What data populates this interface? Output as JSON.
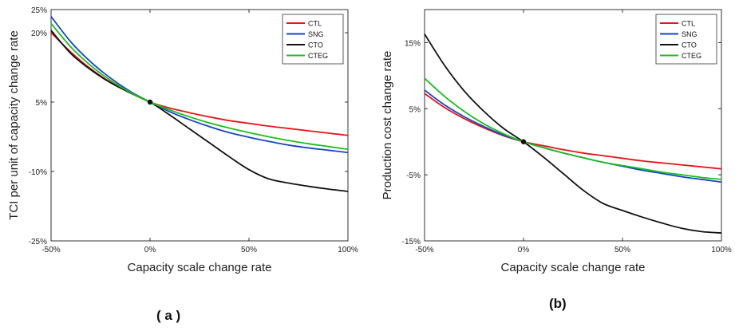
{
  "chart_data": [
    {
      "type": "line",
      "panel_label": "( a )",
      "xlabel": "Capacity scale change rate",
      "ylabel": "TCI per unit of capacity change rate",
      "x_ticks": [
        "-50%",
        "0%",
        "50%",
        "100%"
      ],
      "x_tick_values": [
        -50,
        0,
        50,
        100
      ],
      "y_ticks": [
        "-25%",
        "-10%",
        "5%",
        "20%",
        "25%"
      ],
      "y_tick_values": [
        -25,
        -10,
        5,
        20,
        25
      ],
      "xlim": [
        -50,
        100
      ],
      "ylim": [
        -25,
        25
      ],
      "grid": false,
      "legend_position": "top-right",
      "series": [
        {
          "name": "CTL",
          "color": "#e8141b",
          "x": [
            -50,
            -40,
            -30,
            -20,
            -10,
            0,
            10,
            20,
            30,
            40,
            50,
            60,
            70,
            80,
            90,
            100
          ],
          "y": [
            20,
            15.8,
            12.2,
            9.3,
            7,
            5,
            3.7,
            2.7,
            1.8,
            1,
            0.4,
            -0.2,
            -0.7,
            -1.2,
            -1.7,
            -2.2
          ]
        },
        {
          "name": "SNG",
          "color": "#1446c8",
          "x": [
            -50,
            -40,
            -30,
            -20,
            -10,
            0,
            10,
            20,
            30,
            40,
            50,
            60,
            70,
            80,
            90,
            100
          ],
          "y": [
            23.5,
            18,
            13.7,
            10.2,
            7.3,
            5,
            2.9,
            1.2,
            -0.3,
            -1.6,
            -2.6,
            -3.5,
            -4.3,
            -4.9,
            -5.4,
            -5.9
          ]
        },
        {
          "name": "CTO",
          "color": "#111111",
          "x": [
            -50,
            -40,
            -30,
            -20,
            -10,
            0,
            10,
            20,
            30,
            40,
            50,
            60,
            70,
            80,
            90,
            100
          ],
          "y": [
            20.5,
            15.5,
            12,
            9.2,
            7,
            5,
            2.2,
            -0.8,
            -3.8,
            -6.8,
            -9.6,
            -11.6,
            -12.5,
            -13.2,
            -13.8,
            -14.3
          ]
        },
        {
          "name": "CTEG",
          "color": "#1cbf1c",
          "x": [
            -50,
            -40,
            -30,
            -20,
            -10,
            0,
            10,
            20,
            30,
            40,
            50,
            60,
            70,
            80,
            90,
            100
          ],
          "y": [
            22,
            16.9,
            12.9,
            9.7,
            7.1,
            5,
            3.3,
            1.8,
            0.5,
            -0.6,
            -1.6,
            -2.5,
            -3.3,
            -4,
            -4.6,
            -5.2
          ]
        }
      ],
      "marker": {
        "x": 0,
        "y": 5
      }
    },
    {
      "type": "line",
      "panel_label": "(b)",
      "xlabel": "Capacity scale change rate",
      "ylabel": "Production cost change rate",
      "x_ticks": [
        "-50%",
        "0%",
        "50%",
        "100%"
      ],
      "x_tick_values": [
        -50,
        0,
        50,
        100
      ],
      "y_ticks": [
        "-15%",
        "-5%",
        "5%",
        "15%"
      ],
      "y_tick_values": [
        -15,
        -5,
        5,
        15
      ],
      "xlim": [
        -50,
        100
      ],
      "ylim": [
        -15,
        20
      ],
      "grid": false,
      "legend_position": "top-right",
      "series": [
        {
          "name": "CTL",
          "color": "#e8141b",
          "x": [
            -50,
            -40,
            -30,
            -20,
            -10,
            0,
            10,
            20,
            30,
            40,
            50,
            60,
            70,
            80,
            90,
            100
          ],
          "y": [
            7.3,
            5.2,
            3.5,
            2.1,
            0.9,
            0,
            -0.6,
            -1.2,
            -1.7,
            -2.1,
            -2.5,
            -2.9,
            -3.2,
            -3.5,
            -3.8,
            -4.1
          ]
        },
        {
          "name": "SNG",
          "color": "#1446c8",
          "x": [
            -50,
            -40,
            -30,
            -20,
            -10,
            0,
            10,
            20,
            30,
            40,
            50,
            60,
            70,
            80,
            90,
            100
          ],
          "y": [
            7.8,
            5.6,
            3.8,
            2.3,
            1,
            0,
            -0.9,
            -1.7,
            -2.4,
            -3.1,
            -3.7,
            -4.3,
            -4.8,
            -5.3,
            -5.7,
            -6.1
          ]
        },
        {
          "name": "CTO",
          "color": "#111111",
          "x": [
            -50,
            -40,
            -30,
            -20,
            -10,
            0,
            10,
            20,
            30,
            40,
            50,
            60,
            70,
            80,
            90,
            100
          ],
          "y": [
            16.3,
            11.6,
            7.7,
            4.6,
            2,
            0,
            -2.3,
            -4.8,
            -7.3,
            -9.3,
            -10.4,
            -11.4,
            -12.3,
            -13.1,
            -13.6,
            -13.8
          ]
        },
        {
          "name": "CTEG",
          "color": "#1cbf1c",
          "x": [
            -50,
            -40,
            -30,
            -20,
            -10,
            0,
            10,
            20,
            30,
            40,
            50,
            60,
            70,
            80,
            90,
            100
          ],
          "y": [
            9.6,
            6.9,
            4.6,
            2.7,
            1.2,
            0,
            -0.9,
            -1.7,
            -2.4,
            -3.1,
            -3.6,
            -4.1,
            -4.6,
            -5,
            -5.4,
            -5.7
          ]
        }
      ],
      "marker": {
        "x": 0,
        "y": 0
      }
    }
  ]
}
